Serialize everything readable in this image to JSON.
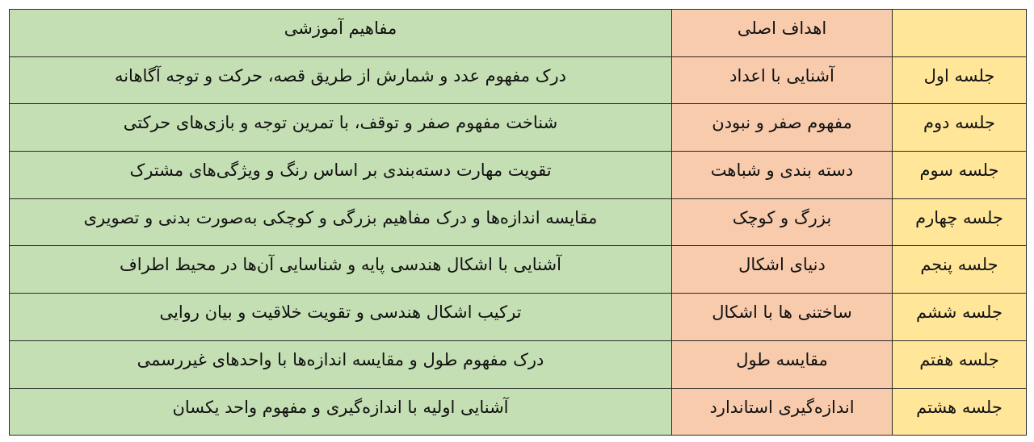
{
  "colors": {
    "session_column": "#ffe699",
    "goal_column": "#f8cbad",
    "concept_column": "#c5dfb4"
  },
  "header": {
    "session": "",
    "goal": "اهداف اصلی",
    "concept": "مفاهیم آموزشی"
  },
  "rows": [
    {
      "session": "جلسه اول",
      "goal": "آشنایی با اعداد",
      "concept": "درک مفهوم عدد و شمارش از طریق قصه، حرکت و توجه آگاهانه"
    },
    {
      "session": "جلسه دوم",
      "goal": "مفهوم صفر و نبودن",
      "concept": "شناخت مفهوم صفر و توقف، با تمرین توجه و بازی‌های حرکتی"
    },
    {
      "session": "جلسه سوم",
      "goal": "دسته بندی و شباهت",
      "concept": "تقویت مهارت دسته‌بندی بر اساس رنگ و ویژگی‌های مشترک"
    },
    {
      "session": "جلسه چهارم",
      "goal": "بزرگ و کوچک",
      "concept": "مقایسه اندازه‌ها و درک مفاهیم بزرگی و کوچکی به‌صورت بدنی و تصویری"
    },
    {
      "session": "جلسه پنجم",
      "goal": "دنیای اشکال",
      "concept": "آشنایی با اشکال هندسی پایه و شناسایی آن‌ها در محیط اطراف"
    },
    {
      "session": "جلسه ششم",
      "goal": "ساختنی ها با اشکال",
      "concept": "ترکیب اشکال هندسی و تقویت خلاقیت و بیان روایی"
    },
    {
      "session": "جلسه هفتم",
      "goal": "مقایسه طول",
      "concept": "درک مفهوم طول و مقایسه اندازه‌ها با واحدهای غیررسمی"
    },
    {
      "session": "جلسه هشتم",
      "goal": "اندازه‌گیری استاندارد",
      "concept": "آشنایی اولیه با اندازه‌گیری و مفهوم واحد یکسان"
    }
  ]
}
